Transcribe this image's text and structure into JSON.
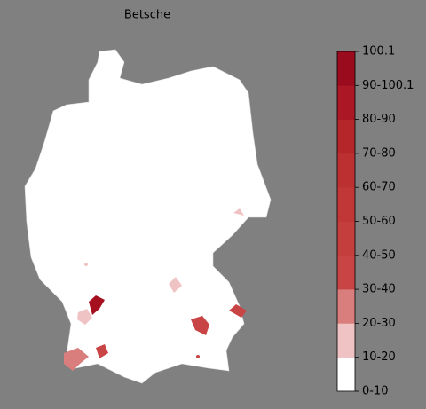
{
  "title": "Betsche",
  "colorbar": {
    "labels": [
      "0-10",
      "10-20",
      "20-30",
      "30-40",
      "40-50",
      "50-60",
      "60-70",
      "70-80",
      "80-90",
      "90-100.1",
      "100.1"
    ],
    "colors": [
      "#ffffff",
      "#efc3c3",
      "#d97d7d",
      "#c94545",
      "#c53e3e",
      "#c13737",
      "#bc3032",
      "#b5262b",
      "#ab1724",
      "#9b0b1e"
    ]
  }
}
